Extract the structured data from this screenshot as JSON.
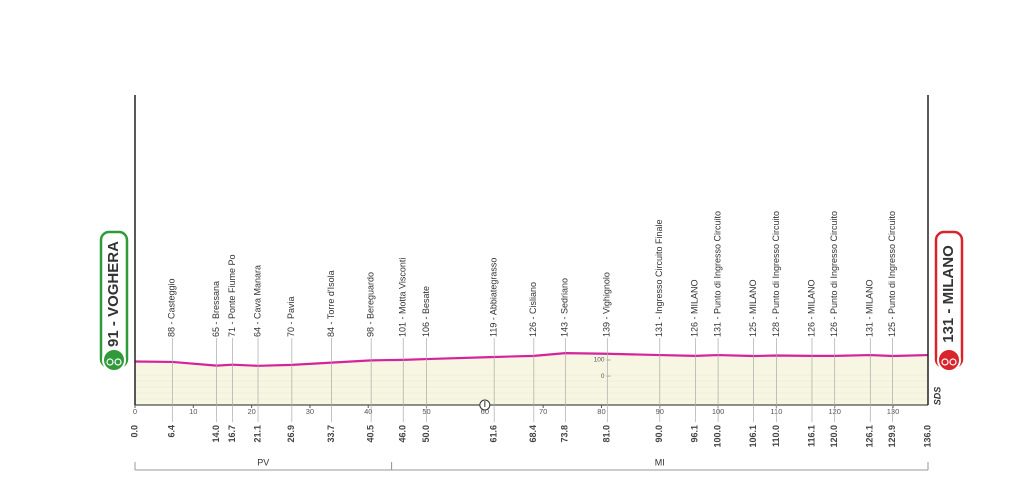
{
  "chart_data": {
    "type": "area",
    "start": "91 - VOGHERA",
    "finish": "131 - MILANO",
    "finish_note": "SDS",
    "color": "#d4239b",
    "fill": "#f6f6e2",
    "xlim": [
      0,
      136
    ],
    "xticks": [
      0,
      10,
      20,
      30,
      40,
      50,
      60,
      70,
      80,
      90,
      100,
      110,
      120,
      130
    ],
    "ylim": [
      -180,
      1750
    ],
    "yticks": [
      0,
      100
    ],
    "start_km": {
      "value": 0,
      "label": "0.0"
    },
    "finish_km": {
      "value": 136,
      "label": "136.0"
    },
    "waypoints": [
      {
        "label": "88 - Casteggio",
        "km": 6.4
      },
      {
        "label": "65 - Bressana",
        "km": {
          "value": 14,
          "label": "14.0"
        }
      },
      {
        "label": "71 - Ponte Fiume Po",
        "km": 16.7
      },
      {
        "label": "64 - Cava Manara",
        "km": 21.1
      },
      {
        "label": "70 - Pavia",
        "km": 26.9
      },
      {
        "label": "84 - Torre d'Isola",
        "km": 33.7
      },
      {
        "label": "98 - Bereguardo",
        "km": 40.5
      },
      {
        "label": "101 - Motta Visconti",
        "km": {
          "value": 46,
          "label": "46.0"
        }
      },
      {
        "label": "106 - Besate",
        "km": {
          "value": 50,
          "label": "50.0"
        }
      },
      {
        "label": "119 - Abbiategrasso",
        "km": 61.6
      },
      {
        "label": "126 - Cisliano",
        "km": 68.4
      },
      {
        "label": "143 - Sedriano",
        "km": 73.8
      },
      {
        "label": "139 - Vighignolo",
        "km": {
          "value": 81,
          "label": "81.0"
        }
      },
      {
        "label": "131 - Ingresso Circuito Finale",
        "km": {
          "value": 90,
          "label": "90.0"
        }
      },
      {
        "label": "126 - MILANO",
        "km": 96.1
      },
      {
        "label": "131 - Punto di Ingresso Circuito",
        "km": {
          "value": 100,
          "label": "100.0"
        }
      },
      {
        "label": "125 - MILANO",
        "km": 106.1
      },
      {
        "label": "128 - Punto di Ingresso Circuito",
        "km": {
          "value": 110,
          "label": "110.0"
        }
      },
      {
        "label": "126 - MILANO",
        "km": 116.1
      },
      {
        "label": "126 - Punto di Ingresso Circuito",
        "km": {
          "value": 120,
          "label": "120.0"
        }
      },
      {
        "label": "131 - MILANO",
        "km": 126.1
      },
      {
        "label": "125 - Punto di Ingresso Circuito",
        "km": 129.9
      }
    ],
    "x": [
      0,
      6.4,
      14,
      16.7,
      21.1,
      26.9,
      33.7,
      40.5,
      46,
      50,
      61.6,
      68.4,
      73.8,
      81,
      90,
      96.1,
      100,
      106.1,
      110,
      116.1,
      120,
      126.1,
      129.9,
      136
    ],
    "values": [
      91,
      88,
      65,
      71,
      64,
      70,
      84,
      98,
      101,
      106,
      119,
      126,
      143,
      139,
      131,
      126,
      131,
      125,
      128,
      126,
      126,
      131,
      125,
      131
    ],
    "sectors": [
      {
        "label": "PV",
        "km": [
          0,
          44
        ]
      },
      {
        "label": "MI",
        "km": [
          44,
          136
        ]
      }
    ]
  }
}
